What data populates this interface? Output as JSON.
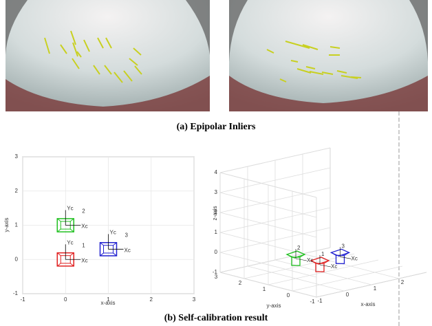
{
  "figure": {
    "panel_a": {
      "caption": "(a) Epipolar Inliers"
    },
    "panel_b": {
      "caption": "(b) Self-calibration result",
      "plot_2d": {
        "xlabel": "x-axis",
        "ylabel": "y-axis",
        "xlim": [
          -1,
          3
        ],
        "ylim": [
          -1,
          3
        ],
        "xticks": [
          -1,
          0,
          1,
          2,
          3
        ],
        "yticks": [
          -1,
          0,
          1,
          2,
          3
        ],
        "axis_labels": [
          "Yc",
          "Xc"
        ],
        "cameras": [
          {
            "label": "1",
            "color": "#e02020",
            "x": 0,
            "y": 0
          },
          {
            "label": "2",
            "color": "#20c020",
            "x": 0,
            "y": 1
          },
          {
            "label": "3",
            "color": "#2020d0",
            "x": 1,
            "y": 0.3
          }
        ]
      },
      "plot_3d": {
        "xlabel": "x-axis",
        "ylabel": "y-axis",
        "zlabel": "z-axis",
        "xlim": [
          -1,
          3
        ],
        "ylim": [
          -1,
          3
        ],
        "zlim": [
          -1,
          4
        ],
        "xticks": [
          -1,
          0,
          1,
          2
        ],
        "yticks": [
          -1,
          0,
          1,
          2,
          3
        ],
        "zticks": [
          -1,
          0,
          1,
          2,
          3,
          4
        ],
        "axis_labels": [
          "Yc",
          "Xc"
        ],
        "cameras": [
          {
            "label": "1",
            "color": "#e02020",
            "x": 0,
            "y": 0,
            "z": 0
          },
          {
            "label": "2",
            "color": "#20c020",
            "x": 0,
            "y": 1,
            "z": 0
          },
          {
            "label": "3",
            "color": "#2020d0",
            "x": 1,
            "y": 0.3,
            "z": 0
          }
        ]
      }
    }
  }
}
